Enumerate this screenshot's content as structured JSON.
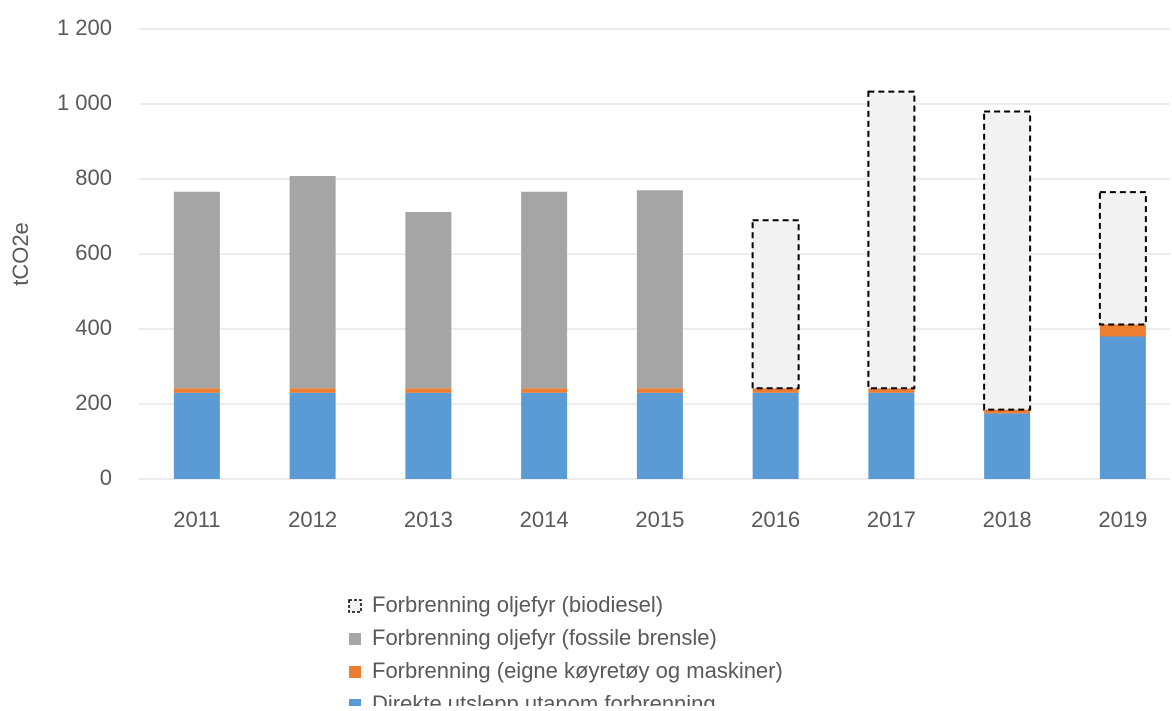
{
  "chart_data": {
    "type": "stacked_bar",
    "y_label": "tCO2e",
    "categories": [
      "2011",
      "2012",
      "2013",
      "2014",
      "2015",
      "2016",
      "2017",
      "2018",
      "2019"
    ],
    "series": [
      {
        "name": "Forbrenning oljefyr (biodiesel)",
        "color": "#f2f2f2",
        "dashed": true,
        "values": [
          0,
          0,
          0,
          0,
          0,
          448,
          791,
          795,
          353
        ]
      },
      {
        "name": "Forbrenning oljefyr (fossile brensle)",
        "color": "#a5a5a5",
        "values": [
          524,
          566,
          470,
          524,
          528,
          0,
          0,
          0,
          0
        ]
      },
      {
        "name": "Forbrenning (eigne køyretøy og maskiner)",
        "color": "#ed7d31",
        "values": [
          12,
          12,
          12,
          12,
          12,
          12,
          12,
          10,
          32
        ]
      },
      {
        "name": "Direkte utslepp utanom forbrenning",
        "color": "#5b9bd5",
        "values": [
          230,
          230,
          230,
          230,
          230,
          230,
          230,
          175,
          380
        ]
      }
    ],
    "ylim": [
      0,
      1200
    ],
    "yticks": [
      0,
      200,
      400,
      600,
      800,
      {
        "value": 1000,
        "label": "1 000"
      },
      {
        "value": 1200,
        "label": "1 200"
      }
    ],
    "grid": true,
    "legend": "bottom"
  }
}
